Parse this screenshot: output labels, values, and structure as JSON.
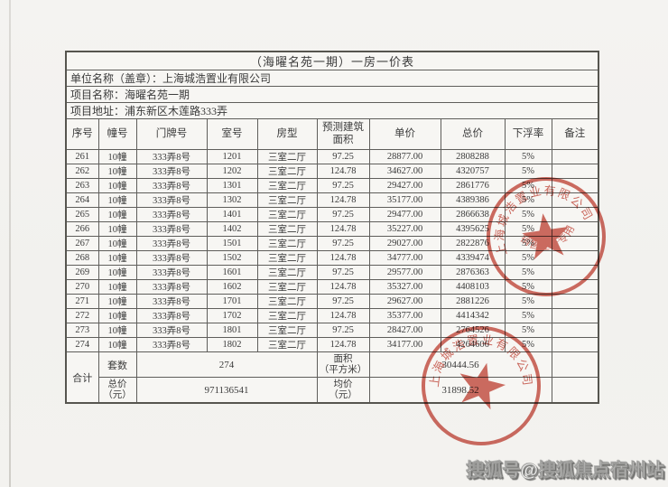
{
  "document": {
    "title": "（海曜名苑一期）一房一价表",
    "company_line": "单位名称（盖章）：上海城浩置业有限公司",
    "project_line": "项目名称：海曜名苑一期",
    "address_line": "项目地址：浦东新区木莲路333弄"
  },
  "table": {
    "headers": [
      "序号",
      "幢号",
      "门牌号",
      "室号",
      "房型",
      "预测建筑面积",
      "单价",
      "总价",
      "下浮率",
      "备注"
    ],
    "rows": [
      [
        "261",
        "10幢",
        "333弄8号",
        "1201",
        "三室二厅",
        "97.25",
        "28877.00",
        "2808288",
        "5%",
        ""
      ],
      [
        "262",
        "10幢",
        "333弄8号",
        "1202",
        "三室二厅",
        "124.78",
        "34627.00",
        "4320757",
        "5%",
        ""
      ],
      [
        "263",
        "10幢",
        "333弄8号",
        "1301",
        "三室二厅",
        "97.25",
        "29427.00",
        "2861776",
        "5%",
        ""
      ],
      [
        "264",
        "10幢",
        "333弄8号",
        "1302",
        "三室二厅",
        "124.78",
        "35177.00",
        "4389386",
        "5%",
        ""
      ],
      [
        "265",
        "10幢",
        "333弄8号",
        "1401",
        "三室二厅",
        "97.25",
        "29477.00",
        "2866638",
        "5%",
        ""
      ],
      [
        "266",
        "10幢",
        "333弄8号",
        "1402",
        "三室二厅",
        "124.78",
        "35227.00",
        "4395625",
        "5%",
        ""
      ],
      [
        "267",
        "10幢",
        "333弄8号",
        "1501",
        "三室二厅",
        "97.25",
        "29027.00",
        "2822876",
        "5%",
        ""
      ],
      [
        "268",
        "10幢",
        "333弄8号",
        "1502",
        "三室二厅",
        "124.78",
        "34777.00",
        "4339474",
        "5%",
        ""
      ],
      [
        "269",
        "10幢",
        "333弄8号",
        "1601",
        "三室二厅",
        "97.25",
        "29577.00",
        "2876363",
        "5%",
        ""
      ],
      [
        "270",
        "10幢",
        "333弄8号",
        "1602",
        "三室二厅",
        "124.78",
        "35327.00",
        "4408103",
        "5%",
        ""
      ],
      [
        "271",
        "10幢",
        "333弄8号",
        "1701",
        "三室二厅",
        "97.25",
        "29627.00",
        "2881226",
        "5%",
        ""
      ],
      [
        "272",
        "10幢",
        "333弄8号",
        "1702",
        "三室二厅",
        "124.78",
        "35377.00",
        "4414342",
        "5%",
        ""
      ],
      [
        "273",
        "10幢",
        "333弄8号",
        "1801",
        "三室二厅",
        "97.25",
        "28427.00",
        "2764526",
        "5%",
        ""
      ],
      [
        "274",
        "10幢",
        "333弄8号",
        "1802",
        "三室二厅",
        "124.78",
        "34177.00",
        "4264606",
        "5%",
        ""
      ]
    ],
    "summary": {
      "total_label": "合计",
      "row_a": {
        "label": "套数",
        "value": "274",
        "label2_line1": "面积",
        "label2_line2": "（平方米）",
        "value2": "30444.56"
      },
      "row_b": {
        "label_line1": "总价",
        "label_line2": "（元）",
        "value": "971136541",
        "label2_line1": "均价",
        "label2_line2": "（元）",
        "value2": "31898.52"
      }
    }
  },
  "seals": {
    "color": "#c03527",
    "upper": {
      "ring_text": "上海城浩置业有限公司",
      "bottom_text": "销售业务专用章",
      "center_icon": "star"
    },
    "lower": {
      "ring_text": "上海城浩置业有限公司",
      "center_icon": "star"
    }
  },
  "watermark": {
    "text": "搜狐号@搜狐焦点宿州站"
  }
}
